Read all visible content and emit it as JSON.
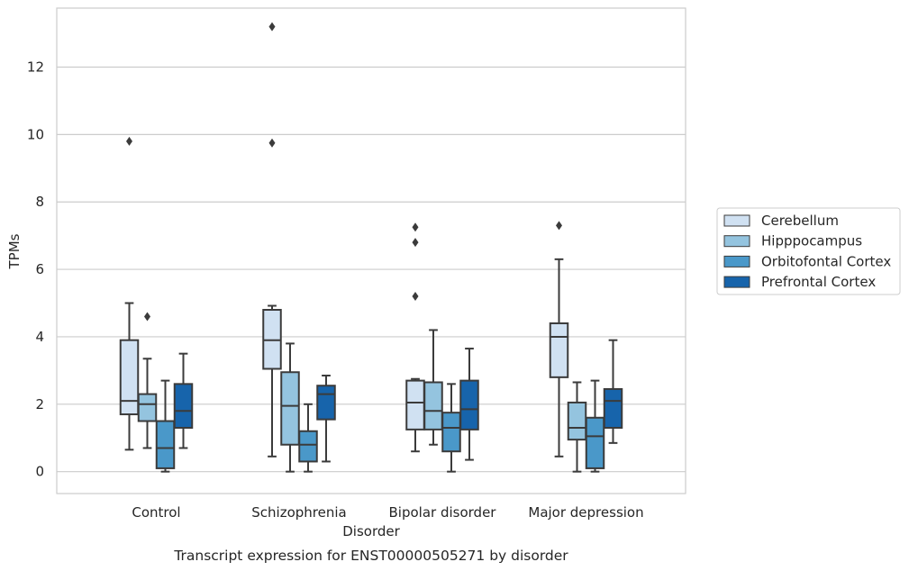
{
  "chart_data": {
    "type": "boxplot",
    "xlabel": "Disorder",
    "ylabel": "TPMs",
    "caption": "Transcript expression for ENST00000505271 by disorder",
    "ylim": [
      -0.65,
      13.75
    ],
    "yticks": [
      0,
      2,
      4,
      6,
      8,
      10,
      12
    ],
    "grid": "horizontal",
    "legend_position": "right-center",
    "categories": [
      "Control",
      "Schizophrenia",
      "Bipolar disorder",
      "Major depression"
    ],
    "series": [
      {
        "name": "Cerebellum",
        "color": "#d0e1f2",
        "boxes": [
          {
            "whisker_low": 0.65,
            "q1": 1.7,
            "median": 2.1,
            "q3": 3.9,
            "whisker_high": 5.0,
            "outliers": [
              9.8
            ]
          },
          {
            "whisker_low": 0.45,
            "q1": 3.05,
            "median": 3.9,
            "q3": 4.8,
            "whisker_high": 4.92,
            "outliers": [
              13.2,
              9.75
            ]
          },
          {
            "whisker_low": 0.6,
            "q1": 1.25,
            "median": 2.05,
            "q3": 2.7,
            "whisker_high": 2.75,
            "outliers": [
              7.25,
              6.8,
              5.2
            ]
          },
          {
            "whisker_low": 0.45,
            "q1": 2.8,
            "median": 4.0,
            "q3": 4.4,
            "whisker_high": 6.3,
            "outliers": [
              7.3
            ]
          }
        ]
      },
      {
        "name": "Hipppocampus",
        "color": "#94c4df",
        "boxes": [
          {
            "whisker_low": 0.7,
            "q1": 1.5,
            "median": 2.0,
            "q3": 2.3,
            "whisker_high": 3.35,
            "outliers": [
              4.6
            ]
          },
          {
            "whisker_low": 0.0,
            "q1": 0.8,
            "median": 1.95,
            "q3": 2.95,
            "whisker_high": 3.8,
            "outliers": []
          },
          {
            "whisker_low": 0.8,
            "q1": 1.25,
            "median": 1.8,
            "q3": 2.65,
            "whisker_high": 4.2,
            "outliers": []
          },
          {
            "whisker_low": 0.0,
            "q1": 0.95,
            "median": 1.3,
            "q3": 2.05,
            "whisker_high": 2.65,
            "outliers": []
          }
        ]
      },
      {
        "name": "Orbitofontal Cortex",
        "color": "#4a98c9",
        "boxes": [
          {
            "whisker_low": 0.0,
            "q1": 0.1,
            "median": 0.7,
            "q3": 1.5,
            "whisker_high": 2.7,
            "outliers": []
          },
          {
            "whisker_low": 0.0,
            "q1": 0.3,
            "median": 0.8,
            "q3": 1.2,
            "whisker_high": 2.0,
            "outliers": []
          },
          {
            "whisker_low": 0.0,
            "q1": 0.6,
            "median": 1.3,
            "q3": 1.75,
            "whisker_high": 2.6,
            "outliers": []
          },
          {
            "whisker_low": 0.0,
            "q1": 0.1,
            "median": 1.05,
            "q3": 1.6,
            "whisker_high": 2.7,
            "outliers": []
          }
        ]
      },
      {
        "name": "Prefrontal Cortex",
        "color": "#1764ab",
        "boxes": [
          {
            "whisker_low": 0.7,
            "q1": 1.3,
            "median": 1.8,
            "q3": 2.6,
            "whisker_high": 3.5,
            "outliers": []
          },
          {
            "whisker_low": 0.3,
            "q1": 1.55,
            "median": 2.3,
            "q3": 2.55,
            "whisker_high": 2.85,
            "outliers": []
          },
          {
            "whisker_low": 0.35,
            "q1": 1.25,
            "median": 1.85,
            "q3": 2.7,
            "whisker_high": 3.65,
            "outliers": []
          },
          {
            "whisker_low": 0.85,
            "q1": 1.3,
            "median": 2.1,
            "q3": 2.45,
            "whisker_high": 3.9,
            "outliers": []
          }
        ]
      }
    ]
  }
}
